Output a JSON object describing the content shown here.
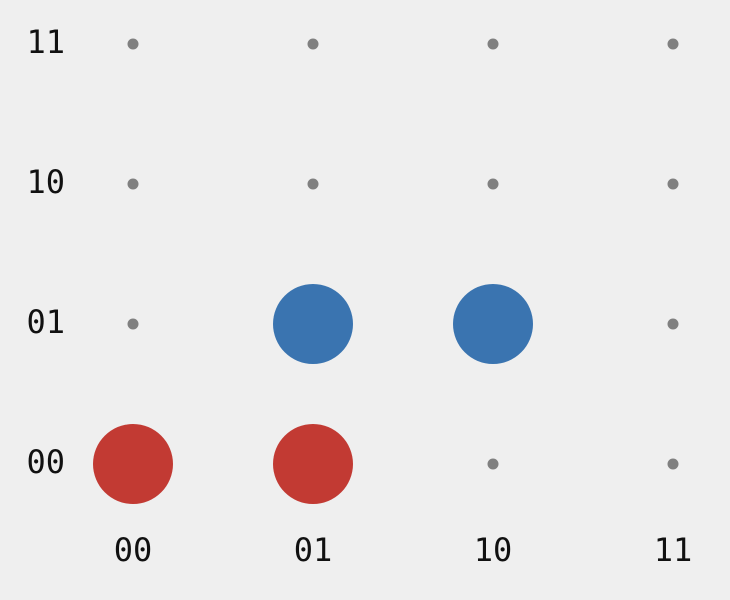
{
  "grid": {
    "columns": [
      "00",
      "01",
      "10",
      "11"
    ],
    "rows": [
      "00",
      "01",
      "10",
      "11"
    ]
  },
  "markers": [
    {
      "col": "00",
      "row": "00",
      "color": "#c23a33"
    },
    {
      "col": "01",
      "row": "00",
      "color": "#c23a33"
    },
    {
      "col": "01",
      "row": "01",
      "color": "#3a74b0"
    },
    {
      "col": "10",
      "row": "01",
      "color": "#3a74b0"
    }
  ],
  "colors": {
    "background": "#efefef",
    "dot": "#808080",
    "text": "#111111"
  }
}
